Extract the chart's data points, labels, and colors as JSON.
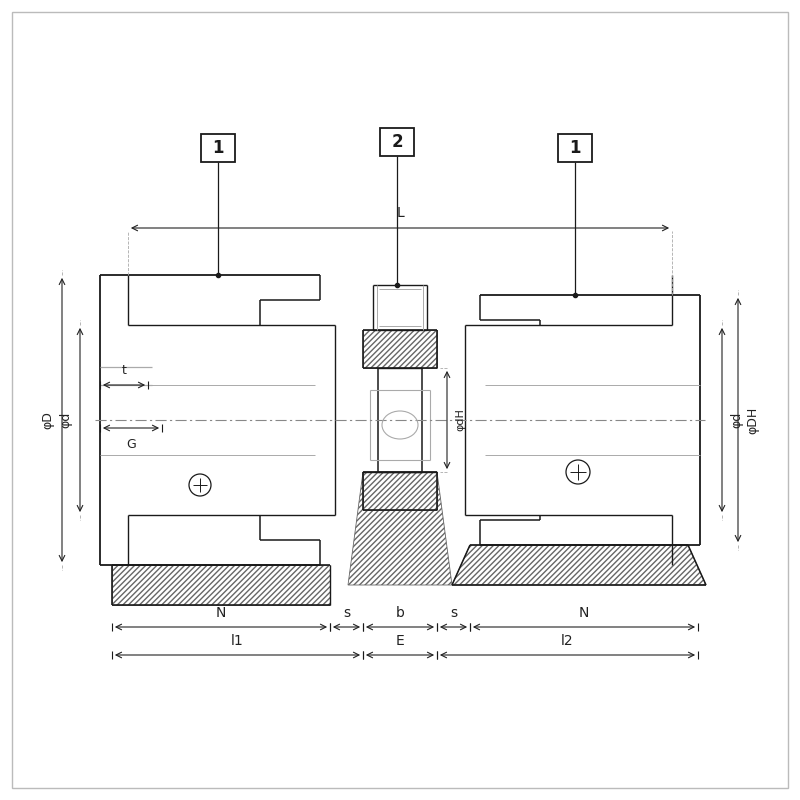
{
  "bg_color": "#ffffff",
  "line_color": "#1a1a1a",
  "light_line_color": "#aaaaaa",
  "dim_color": "#222222",
  "box_labels": [
    "1",
    "2",
    "1"
  ],
  "label_phiD": "φD",
  "label_phid": "φd",
  "label_phiDH": "φDH",
  "label_phidH": "φdH",
  "label_L": "L",
  "label_l1": "l1",
  "label_l2": "l2",
  "label_E": "E",
  "label_N": "N",
  "label_b": "b",
  "label_s": "s",
  "label_t": "t",
  "label_G": "G"
}
